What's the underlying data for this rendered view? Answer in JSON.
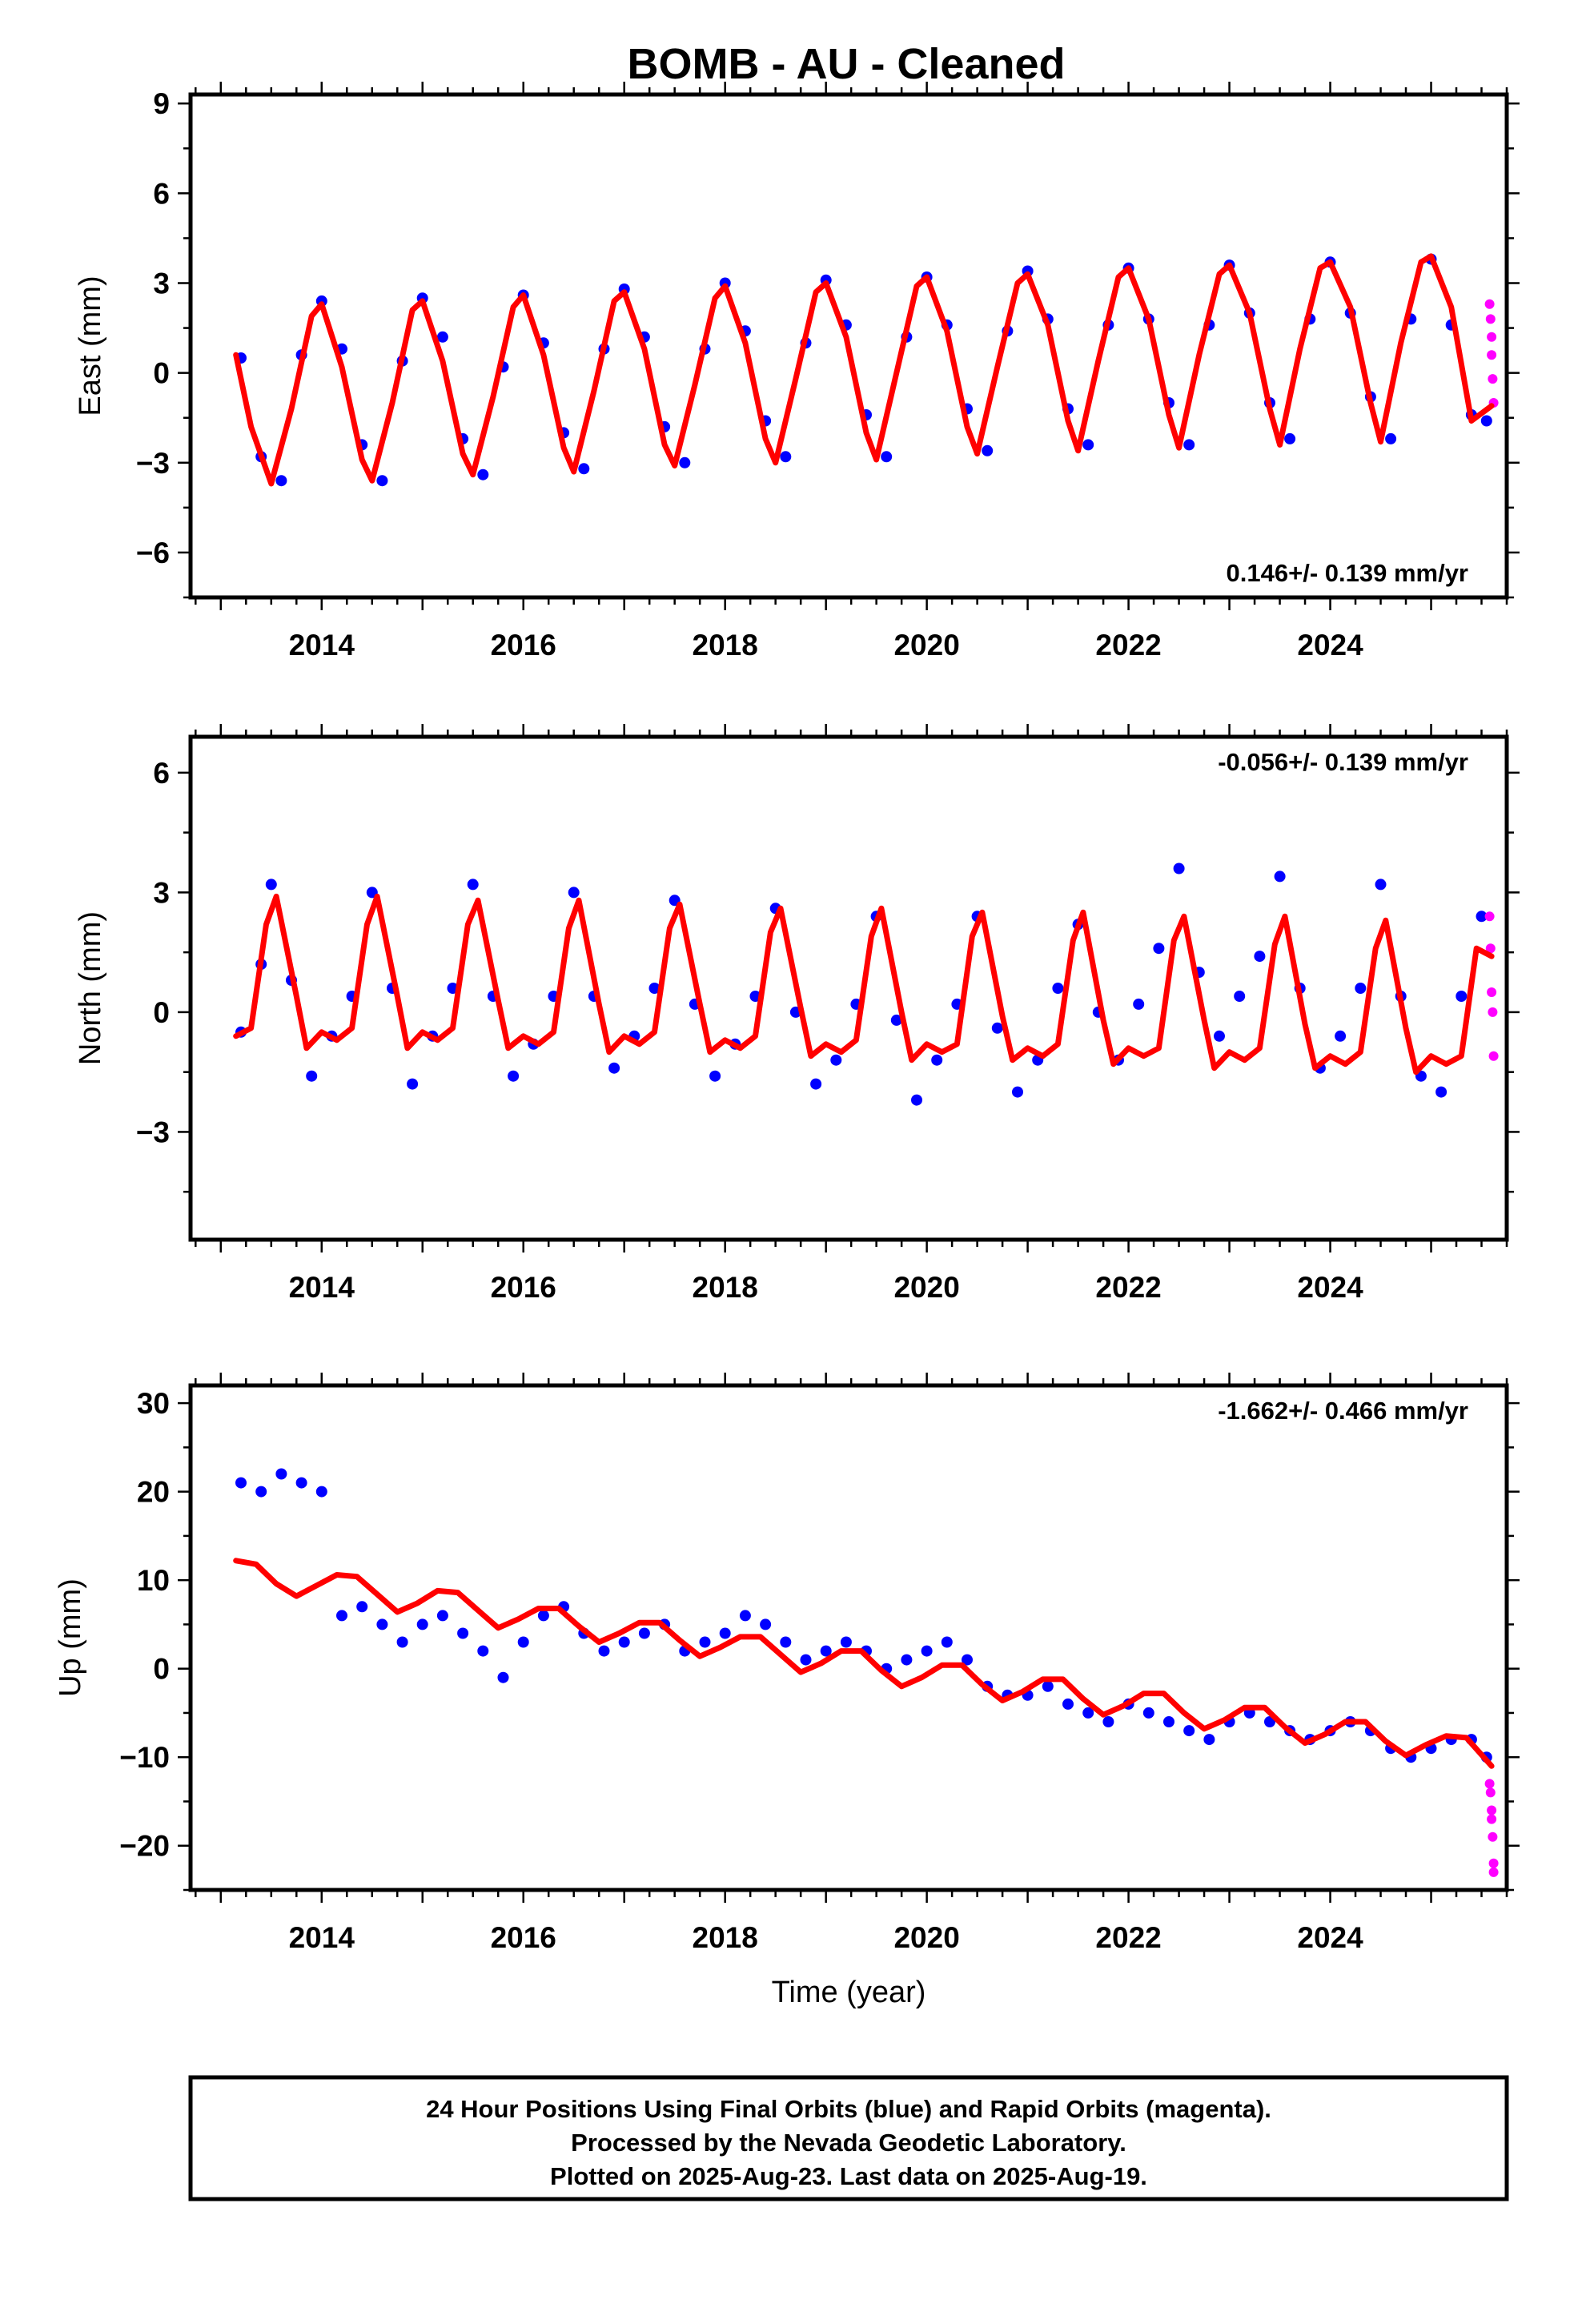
{
  "title": "BOMB  - AU - Cleaned",
  "footer": {
    "line1": "24 Hour Positions Using Final Orbits (blue) and Rapid Orbits (magenta).",
    "line2": "Processed by the Nevada Geodetic Laboratory.",
    "line3": "Plotted on 2025-Aug-23. Last data on 2025-Aug-19."
  },
  "colors": {
    "final_points": "#0000ff",
    "rapid_points": "#ff00ff",
    "model": "#ff0000",
    "axes": "#000000"
  },
  "chart_data": [
    {
      "type": "scatter",
      "panel": "east",
      "ylabel": "East (mm)",
      "xlabel": "",
      "xlim": [
        2012.7,
        2025.75
      ],
      "ylim": [
        -7.5,
        9.3
      ],
      "xticks": [
        2014,
        2016,
        2018,
        2020,
        2022,
        2024
      ],
      "yticks": [
        -6,
        -3,
        0,
        3,
        6,
        9
      ],
      "rate_label": "0.146+/- 0.139 mm/yr",
      "rate_position": "bottom-right",
      "series": [
        {
          "name": "",
          "style": "points",
          "color": "#0000ff",
          "x": [
            2013.2,
            2013.4,
            2013.6,
            2013.8,
            2014.0,
            2014.2,
            2014.4,
            2014.6,
            2014.8,
            2015.0,
            2015.2,
            2015.4,
            2015.6,
            2015.8,
            2016.0,
            2016.2,
            2016.4,
            2016.6,
            2016.8,
            2017.0,
            2017.2,
            2017.4,
            2017.6,
            2017.8,
            2018.0,
            2018.2,
            2018.4,
            2018.6,
            2018.8,
            2019.0,
            2019.2,
            2019.4,
            2019.6,
            2019.8,
            2020.0,
            2020.2,
            2020.4,
            2020.6,
            2020.8,
            2021.0,
            2021.2,
            2021.4,
            2021.6,
            2021.8,
            2022.0,
            2022.2,
            2022.4,
            2022.6,
            2022.8,
            2023.0,
            2023.2,
            2023.4,
            2023.6,
            2023.8,
            2024.0,
            2024.2,
            2024.4,
            2024.6,
            2024.8,
            2025.0,
            2025.2,
            2025.4,
            2025.55
          ],
          "y": [
            0.5,
            -2.8,
            -3.6,
            0.6,
            2.4,
            0.8,
            -2.4,
            -3.6,
            0.4,
            2.5,
            1.2,
            -2.2,
            -3.4,
            0.2,
            2.6,
            1.0,
            -2.0,
            -3.2,
            0.8,
            2.8,
            1.2,
            -1.8,
            -3.0,
            0.8,
            3.0,
            1.4,
            -1.6,
            -2.8,
            1.0,
            3.1,
            1.6,
            -1.4,
            -2.8,
            1.2,
            3.2,
            1.6,
            -1.2,
            -2.6,
            1.4,
            3.4,
            1.8,
            -1.2,
            -2.4,
            1.6,
            3.5,
            1.8,
            -1.0,
            -2.4,
            1.6,
            3.6,
            2.0,
            -1.0,
            -2.2,
            1.8,
            3.7,
            2.0,
            -0.8,
            -2.2,
            1.8,
            3.8,
            1.6,
            -1.4,
            -1.6
          ]
        },
        {
          "name": "",
          "style": "points",
          "color": "#ff00ff",
          "x": [
            2025.58,
            2025.59,
            2025.6,
            2025.6,
            2025.61,
            2025.62
          ],
          "y": [
            2.3,
            1.8,
            1.2,
            0.6,
            -0.2,
            -1.0
          ]
        },
        {
          "name": "",
          "style": "line",
          "color": "#ff0000",
          "x": [
            2013.15,
            2013.3,
            2013.5,
            2013.7,
            2013.9,
            2014.0,
            2014.2,
            2014.4,
            2014.5,
            2014.7,
            2014.9,
            2015.0,
            2015.2,
            2015.4,
            2015.5,
            2015.7,
            2015.9,
            2016.0,
            2016.2,
            2016.4,
            2016.5,
            2016.7,
            2016.9,
            2017.0,
            2017.2,
            2017.4,
            2017.5,
            2017.7,
            2017.9,
            2018.0,
            2018.2,
            2018.4,
            2018.5,
            2018.7,
            2018.9,
            2019.0,
            2019.2,
            2019.4,
            2019.5,
            2019.7,
            2019.9,
            2020.0,
            2020.2,
            2020.4,
            2020.5,
            2020.7,
            2020.9,
            2021.0,
            2021.2,
            2021.4,
            2021.5,
            2021.7,
            2021.9,
            2022.0,
            2022.2,
            2022.4,
            2022.5,
            2022.7,
            2022.9,
            2023.0,
            2023.2,
            2023.4,
            2023.5,
            2023.7,
            2023.9,
            2024.0,
            2024.2,
            2024.4,
            2024.5,
            2024.7,
            2024.9,
            2025.0,
            2025.2,
            2025.4,
            2025.6
          ],
          "y": [
            0.6,
            -1.8,
            -3.7,
            -1.2,
            1.9,
            2.3,
            0.2,
            -2.9,
            -3.6,
            -1.0,
            2.1,
            2.4,
            0.4,
            -2.7,
            -3.4,
            -0.8,
            2.2,
            2.6,
            0.6,
            -2.5,
            -3.3,
            -0.6,
            2.4,
            2.7,
            0.8,
            -2.4,
            -3.1,
            -0.4,
            2.5,
            2.9,
            1.0,
            -2.2,
            -3.0,
            -0.2,
            2.7,
            3.0,
            1.2,
            -2.0,
            -2.9,
            0.0,
            2.9,
            3.2,
            1.4,
            -1.8,
            -2.7,
            0.2,
            3.0,
            3.3,
            1.6,
            -1.6,
            -2.6,
            0.4,
            3.2,
            3.5,
            1.8,
            -1.4,
            -2.5,
            0.6,
            3.3,
            3.6,
            2.0,
            -1.2,
            -2.4,
            0.8,
            3.5,
            3.7,
            2.2,
            -1.0,
            -2.3,
            1.0,
            3.7,
            3.9,
            2.2,
            -1.6,
            -1.1
          ]
        }
      ]
    },
    {
      "type": "scatter",
      "panel": "north",
      "ylabel": "North (mm)",
      "xlabel": "",
      "xlim": [
        2012.7,
        2025.75
      ],
      "ylim": [
        -5.7,
        6.9
      ],
      "xticks": [
        2014,
        2016,
        2018,
        2020,
        2022,
        2024
      ],
      "yticks": [
        -3,
        0,
        3,
        6
      ],
      "rate_label": "-0.056+/- 0.139 mm/yr",
      "rate_position": "top-right",
      "series": [
        {
          "name": "",
          "style": "points",
          "color": "#0000ff",
          "x": [
            2013.2,
            2013.4,
            2013.5,
            2013.7,
            2013.9,
            2014.1,
            2014.3,
            2014.5,
            2014.7,
            2014.9,
            2015.1,
            2015.3,
            2015.5,
            2015.7,
            2015.9,
            2016.1,
            2016.3,
            2016.5,
            2016.7,
            2016.9,
            2017.1,
            2017.3,
            2017.5,
            2017.7,
            2017.9,
            2018.1,
            2018.3,
            2018.5,
            2018.7,
            2018.9,
            2019.1,
            2019.3,
            2019.5,
            2019.7,
            2019.9,
            2020.1,
            2020.3,
            2020.5,
            2020.7,
            2020.9,
            2021.1,
            2021.3,
            2021.5,
            2021.7,
            2021.9,
            2022.1,
            2022.3,
            2022.5,
            2022.7,
            2022.9,
            2023.1,
            2023.3,
            2023.5,
            2023.7,
            2023.9,
            2024.1,
            2024.3,
            2024.5,
            2024.7,
            2024.9,
            2025.1,
            2025.3,
            2025.5
          ],
          "y": [
            -0.5,
            1.2,
            3.2,
            0.8,
            -1.6,
            -0.6,
            0.4,
            3.0,
            0.6,
            -1.8,
            -0.6,
            0.6,
            3.2,
            0.4,
            -1.6,
            -0.8,
            0.4,
            3.0,
            0.4,
            -1.4,
            -0.6,
            0.6,
            2.8,
            0.2,
            -1.6,
            -0.8,
            0.4,
            2.6,
            0.0,
            -1.8,
            -1.2,
            0.2,
            2.4,
            -0.2,
            -2.2,
            -1.2,
            0.2,
            2.4,
            -0.4,
            -2.0,
            -1.2,
            0.6,
            2.2,
            0.0,
            -1.2,
            0.2,
            1.6,
            3.6,
            1.0,
            -0.6,
            0.4,
            1.4,
            3.4,
            0.6,
            -1.4,
            -0.6,
            0.6,
            3.2,
            0.4,
            -1.6,
            -2.0,
            0.4,
            2.4
          ]
        },
        {
          "name": "",
          "style": "points",
          "color": "#ff00ff",
          "x": [
            2025.58,
            2025.59,
            2025.6,
            2025.61,
            2025.62
          ],
          "y": [
            2.4,
            1.6,
            0.5,
            0.0,
            -1.1
          ]
        },
        {
          "name": "",
          "style": "line",
          "color": "#ff0000",
          "x": [
            2013.15,
            2013.3,
            2013.45,
            2013.55,
            2013.75,
            2013.85,
            2014.0,
            2014.15,
            2014.3,
            2014.45,
            2014.55,
            2014.75,
            2014.85,
            2015.0,
            2015.15,
            2015.3,
            2015.45,
            2015.55,
            2015.75,
            2015.85,
            2016.0,
            2016.15,
            2016.3,
            2016.45,
            2016.55,
            2016.75,
            2016.85,
            2017.0,
            2017.15,
            2017.3,
            2017.45,
            2017.55,
            2017.75,
            2017.85,
            2018.0,
            2018.15,
            2018.3,
            2018.45,
            2018.55,
            2018.75,
            2018.85,
            2019.0,
            2019.15,
            2019.3,
            2019.45,
            2019.55,
            2019.75,
            2019.85,
            2020.0,
            2020.15,
            2020.3,
            2020.45,
            2020.55,
            2020.75,
            2020.85,
            2021.0,
            2021.15,
            2021.3,
            2021.45,
            2021.55,
            2021.75,
            2021.85,
            2022.0,
            2022.15,
            2022.3,
            2022.45,
            2022.55,
            2022.75,
            2022.85,
            2023.0,
            2023.15,
            2023.3,
            2023.45,
            2023.55,
            2023.75,
            2023.85,
            2024.0,
            2024.15,
            2024.3,
            2024.45,
            2024.55,
            2024.75,
            2024.85,
            2025.0,
            2025.15,
            2025.3,
            2025.45,
            2025.6
          ],
          "y": [
            -0.6,
            -0.4,
            2.2,
            2.9,
            0.4,
            -0.9,
            -0.5,
            -0.7,
            -0.4,
            2.2,
            2.9,
            0.4,
            -0.9,
            -0.5,
            -0.7,
            -0.4,
            2.2,
            2.8,
            0.3,
            -0.9,
            -0.6,
            -0.8,
            -0.5,
            2.1,
            2.8,
            0.2,
            -1.0,
            -0.6,
            -0.8,
            -0.5,
            2.1,
            2.7,
            0.2,
            -1.0,
            -0.7,
            -0.9,
            -0.6,
            2.0,
            2.6,
            0.1,
            -1.1,
            -0.8,
            -1.0,
            -0.7,
            1.9,
            2.6,
            0.0,
            -1.2,
            -0.8,
            -1.0,
            -0.8,
            1.9,
            2.5,
            -0.1,
            -1.2,
            -0.9,
            -1.1,
            -0.8,
            1.8,
            2.5,
            -0.2,
            -1.3,
            -0.9,
            -1.1,
            -0.9,
            1.8,
            2.4,
            -0.2,
            -1.4,
            -1.0,
            -1.2,
            -0.9,
            1.7,
            2.4,
            -0.3,
            -1.4,
            -1.1,
            -1.3,
            -1.0,
            1.6,
            2.3,
            -0.4,
            -1.5,
            -1.1,
            -1.3,
            -1.1,
            1.6,
            1.4
          ]
        }
      ]
    },
    {
      "type": "scatter",
      "panel": "up",
      "ylabel": "Up (mm)",
      "xlabel": "Time (year)",
      "xlim": [
        2012.7,
        2025.75
      ],
      "ylim": [
        -25,
        32
      ],
      "xticks": [
        2014,
        2016,
        2018,
        2020,
        2022,
        2024
      ],
      "yticks": [
        -20,
        -10,
        0,
        10,
        20,
        30
      ],
      "rate_label": "-1.662+/- 0.466 mm/yr",
      "rate_position": "top-right",
      "series": [
        {
          "name": "",
          "style": "points",
          "color": "#0000ff",
          "x": [
            2013.2,
            2013.4,
            2013.6,
            2013.8,
            2014.0,
            2014.2,
            2014.4,
            2014.6,
            2014.8,
            2015.0,
            2015.2,
            2015.4,
            2015.6,
            2015.8,
            2016.0,
            2016.2,
            2016.4,
            2016.6,
            2016.8,
            2017.0,
            2017.2,
            2017.4,
            2017.6,
            2017.8,
            2018.0,
            2018.2,
            2018.4,
            2018.6,
            2018.8,
            2019.0,
            2019.2,
            2019.4,
            2019.6,
            2019.8,
            2020.0,
            2020.2,
            2020.4,
            2020.6,
            2020.8,
            2021.0,
            2021.2,
            2021.4,
            2021.6,
            2021.8,
            2022.0,
            2022.2,
            2022.4,
            2022.6,
            2022.8,
            2023.0,
            2023.2,
            2023.4,
            2023.6,
            2023.8,
            2024.0,
            2024.2,
            2024.4,
            2024.6,
            2024.8,
            2025.0,
            2025.2,
            2025.4,
            2025.55
          ],
          "y": [
            21,
            20,
            22,
            21,
            20,
            6,
            7,
            5,
            3,
            5,
            6,
            4,
            2,
            -1,
            3,
            6,
            7,
            4,
            2,
            3,
            4,
            5,
            2,
            3,
            4,
            6,
            5,
            3,
            1,
            2,
            3,
            2,
            0,
            1,
            2,
            3,
            1,
            -2,
            -3,
            -3,
            -2,
            -4,
            -5,
            -6,
            -4,
            -5,
            -6,
            -7,
            -8,
            -6,
            -5,
            -6,
            -7,
            -8,
            -7,
            -6,
            -7,
            -9,
            -10,
            -9,
            -8,
            -8,
            -10
          ]
        },
        {
          "name": "",
          "style": "points",
          "color": "#ff00ff",
          "x": [
            2025.58,
            2025.59,
            2025.6,
            2025.6,
            2025.61,
            2025.62,
            2025.62
          ],
          "y": [
            -13,
            -14,
            -16,
            -17,
            -19,
            -22,
            -23
          ]
        },
        {
          "name": "",
          "style": "line",
          "color": "#ff0000",
          "x": [
            2013.15,
            2013.35,
            2013.55,
            2013.75,
            2013.95,
            2014.15,
            2014.35,
            2014.55,
            2014.75,
            2014.95,
            2015.15,
            2015.35,
            2015.55,
            2015.75,
            2015.95,
            2016.15,
            2016.35,
            2016.55,
            2016.75,
            2016.95,
            2017.15,
            2017.35,
            2017.55,
            2017.75,
            2017.95,
            2018.15,
            2018.35,
            2018.55,
            2018.75,
            2018.95,
            2019.15,
            2019.35,
            2019.55,
            2019.75,
            2019.95,
            2020.15,
            2020.35,
            2020.55,
            2020.75,
            2020.95,
            2021.15,
            2021.35,
            2021.55,
            2021.75,
            2021.95,
            2022.15,
            2022.35,
            2022.55,
            2022.75,
            2022.95,
            2023.15,
            2023.35,
            2023.55,
            2023.75,
            2023.95,
            2024.15,
            2024.35,
            2024.55,
            2024.75,
            2024.95,
            2025.15,
            2025.35,
            2025.6
          ],
          "y": [
            12.2,
            11.8,
            9.6,
            8.2,
            9.4,
            10.6,
            10.4,
            8.4,
            6.4,
            7.4,
            8.8,
            8.6,
            6.6,
            4.6,
            5.6,
            6.8,
            6.8,
            4.8,
            3.0,
            4.0,
            5.2,
            5.2,
            3.2,
            1.4,
            2.4,
            3.6,
            3.6,
            1.6,
            -0.4,
            0.6,
            2.0,
            2.0,
            -0.2,
            -2.0,
            -1.0,
            0.4,
            0.4,
            -1.8,
            -3.6,
            -2.6,
            -1.2,
            -1.2,
            -3.4,
            -5.2,
            -4.2,
            -2.8,
            -2.8,
            -5.0,
            -6.8,
            -5.8,
            -4.4,
            -4.4,
            -6.6,
            -8.4,
            -7.4,
            -6.0,
            -6.0,
            -8.2,
            -9.8,
            -8.6,
            -7.6,
            -7.8,
            -11.0
          ]
        }
      ]
    }
  ]
}
